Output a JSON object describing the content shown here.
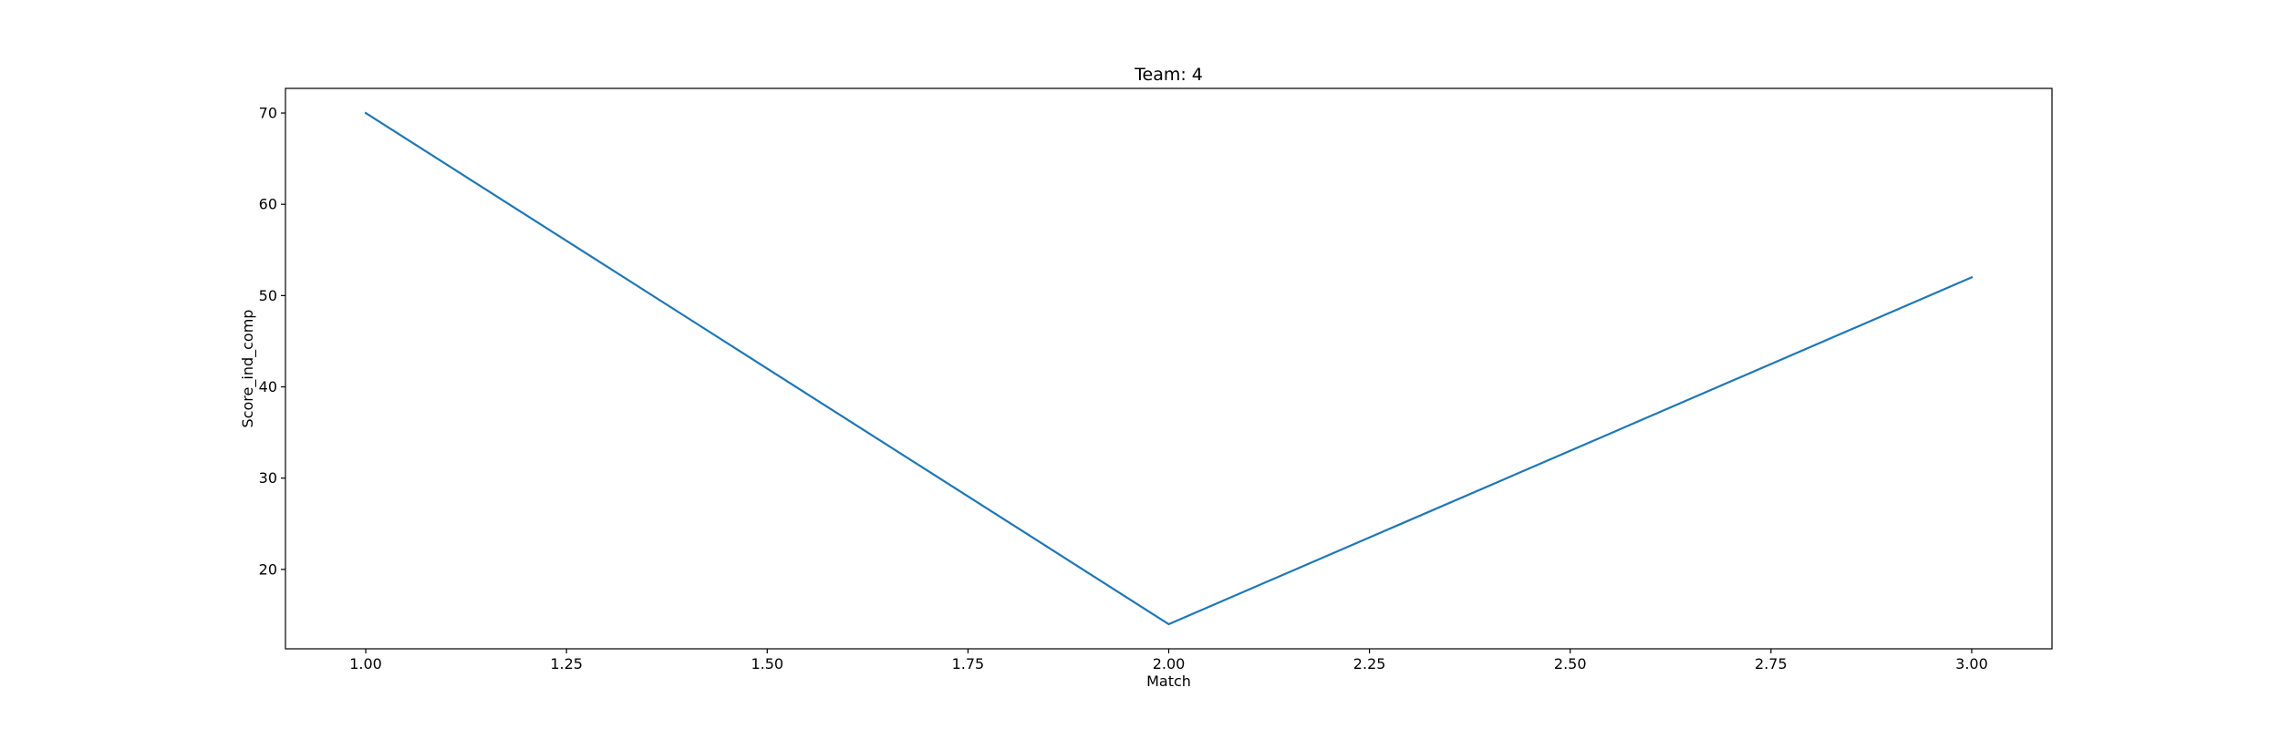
{
  "chart_data": {
    "type": "line",
    "title": "Team: 4",
    "xlabel": "Match",
    "ylabel": "Score_ind_comp",
    "x": [
      1.0,
      2.0,
      3.0
    ],
    "series": [
      {
        "values": [
          70,
          14,
          52
        ],
        "color": "#1f77b4"
      }
    ],
    "xlim": [
      0.9,
      3.1
    ],
    "ylim": [
      11.3,
      72.7
    ],
    "xticks": [
      1.0,
      1.25,
      1.5,
      1.75,
      2.0,
      2.25,
      2.5,
      2.75,
      3.0
    ],
    "xtick_labels": [
      "1.00",
      "1.25",
      "1.50",
      "1.75",
      "2.00",
      "2.25",
      "2.50",
      "2.75",
      "3.00"
    ],
    "yticks": [
      20,
      30,
      40,
      50,
      60,
      70
    ],
    "ytick_labels": [
      "20",
      "30",
      "40",
      "50",
      "60",
      "70"
    ],
    "grid": false,
    "legend": false
  }
}
